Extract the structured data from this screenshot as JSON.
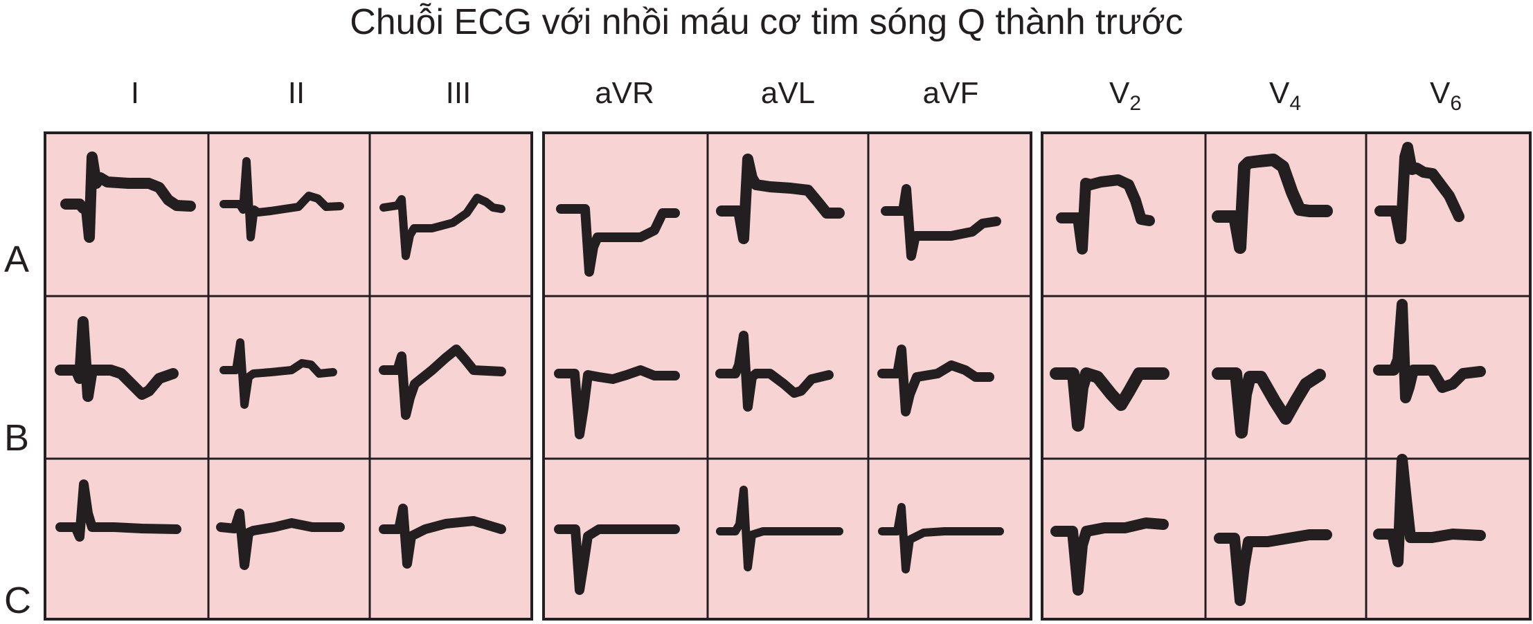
{
  "title": "Chuỗi ECG với nhồi máu cơ tim sóng Q thành trước",
  "leads": [
    {
      "name": "I",
      "sub": ""
    },
    {
      "name": "II",
      "sub": ""
    },
    {
      "name": "III",
      "sub": ""
    },
    {
      "name": "aVR",
      "sub": ""
    },
    {
      "name": "aVL",
      "sub": ""
    },
    {
      "name": "aVF",
      "sub": ""
    },
    {
      "name": "V",
      "sub": "2"
    },
    {
      "name": "V",
      "sub": "4"
    },
    {
      "name": "V",
      "sub": "6"
    }
  ],
  "rows": [
    "A",
    "B",
    "C"
  ],
  "colors": {
    "panel_fill": "#f8d3d3",
    "border": "#231f20",
    "trace": "#231f20"
  }
}
